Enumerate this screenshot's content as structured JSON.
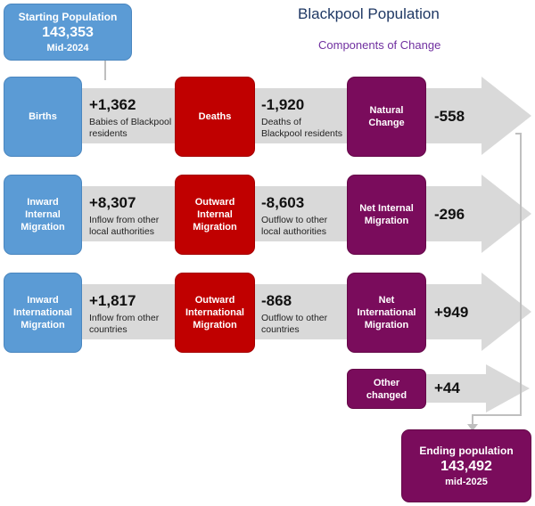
{
  "title": "Blackpool Population",
  "subtitle": "Components of Change",
  "start": {
    "label": "Starting Population",
    "value": "143,353",
    "date": "Mid-2024"
  },
  "end": {
    "label": "Ending population",
    "value": "143,492",
    "date": "mid-2025"
  },
  "rows": [
    {
      "in_label": "Births",
      "in_value": "+1,362",
      "in_desc_1": "Babies of Blackpool",
      "in_desc_2": "residents",
      "out_label": "Deaths",
      "out_value": "-1,920",
      "out_desc_1": "Deaths of",
      "out_desc_2": "Blackpool residents",
      "net_label_1": "Natural",
      "net_label_2": "Change",
      "net_value": "-558"
    },
    {
      "in_label_1": "Inward",
      "in_label_2": "Internal",
      "in_label_3": "Migration",
      "in_value": "+8,307",
      "in_desc_1": "Inflow from other",
      "in_desc_2": "local authorities",
      "out_label_1": "Outward",
      "out_label_2": "Internal",
      "out_label_3": "Migration",
      "out_value": "-8,603",
      "out_desc_1": "Outflow to other",
      "out_desc_2": "local authorities",
      "net_label_1": "Net Internal",
      "net_label_2": "Migration",
      "net_value": "-296"
    },
    {
      "in_label_1": "Inward",
      "in_label_2": "International",
      "in_label_3": "Migration",
      "in_value": "+1,817",
      "in_desc_1": "Inflow from other",
      "in_desc_2": "countries",
      "out_label_1": "Outward",
      "out_label_2": "International",
      "out_label_3": "Migration",
      "out_value": "-868",
      "out_desc_1": "Outflow to other",
      "out_desc_2": "countries",
      "net_label_1": "Net",
      "net_label_2": "International",
      "net_label_3": "Migration",
      "net_value": "+949"
    }
  ],
  "other": {
    "label_1": "Other",
    "label_2": "changed",
    "value": "+44"
  },
  "colors": {
    "inflow": "#5b9bd5",
    "outflow": "#c00000",
    "net": "#7a0c5c",
    "arrow": "#dcdcdc"
  }
}
